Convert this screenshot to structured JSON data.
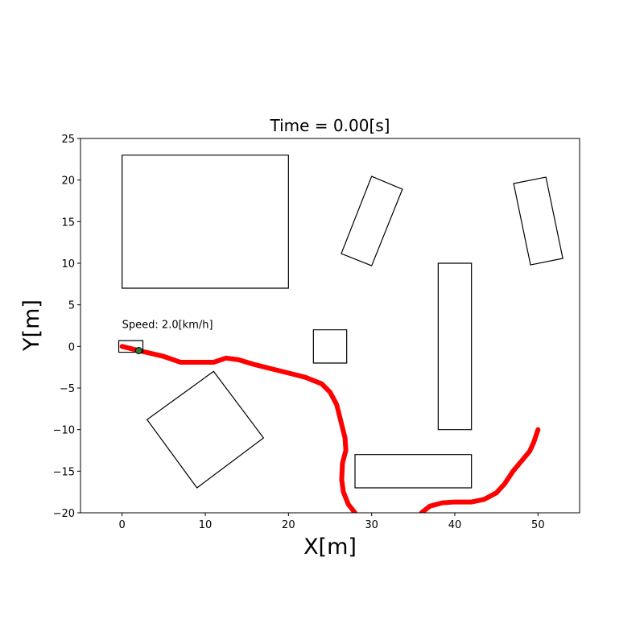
{
  "chart_data": {
    "type": "line",
    "title": "Time = 0.00[s]",
    "x_label": "X[m]",
    "y_label": "Y[m]",
    "annotation": {
      "text": "Speed: 2.0[km/h]",
      "x": 0,
      "y": 2.5
    },
    "xlim": [
      -5,
      55
    ],
    "ylim": [
      -20,
      25
    ],
    "xticks": [
      0,
      10,
      20,
      30,
      40,
      50
    ],
    "yticks": [
      {
        "value": -20,
        "label": "−20"
      },
      {
        "value": -15,
        "label": "−15"
      },
      {
        "value": -10,
        "label": "−10"
      },
      {
        "value": -5,
        "label": "−5"
      },
      0,
      5,
      10,
      15,
      20,
      25
    ],
    "series": [
      {
        "color": "#ff0000",
        "x": [
          0,
          2,
          5,
          7,
          9,
          11,
          12.5,
          14,
          16,
          18,
          20,
          22,
          24,
          25,
          25.8,
          26.3,
          26.8,
          26.9,
          26.5,
          26.4,
          26.6,
          27.2,
          28,
          null,
          36,
          37,
          38.5,
          40,
          42,
          43.5,
          45,
          46,
          47,
          48,
          49,
          49.5,
          50
        ],
        "y": [
          0,
          -0.5,
          -1.2,
          -1.9,
          -1.9,
          -1.9,
          -1.4,
          -1.6,
          -2.2,
          -2.7,
          -3.2,
          -3.7,
          -4.5,
          -5.5,
          -7,
          -9,
          -11,
          -12.5,
          -14,
          -16,
          -17.5,
          -19,
          -20,
          null,
          -20,
          -19.2,
          -18.8,
          -18.7,
          -18.7,
          -18.4,
          -17.6,
          -16.5,
          -15,
          -13.8,
          -12.6,
          -11.5,
          -10
        ]
      }
    ],
    "obstacles": [
      {
        "x": [
          0,
          20,
          20,
          0
        ],
        "y": [
          7,
          7,
          23,
          23
        ]
      },
      {
        "x": [
          30,
          33.7,
          30,
          26.35
        ],
        "y": [
          20.45,
          18.9,
          9.7,
          11.16
        ]
      },
      {
        "x": [
          47.07,
          50.95,
          52.98,
          49.1
        ],
        "y": [
          19.58,
          20.35,
          10.58,
          9.8
        ]
      },
      {
        "x": [
          38,
          42,
          42,
          38
        ],
        "y": [
          -10,
          -10,
          10,
          10
        ]
      },
      {
        "x": [
          23,
          27,
          27,
          23
        ],
        "y": [
          -2,
          -2,
          2,
          2
        ]
      },
      {
        "x": [
          28,
          42,
          42,
          28
        ],
        "y": [
          -17,
          -17,
          -13,
          -13
        ]
      },
      {
        "x": [
          11,
          17,
          9,
          3
        ],
        "y": [
          -3,
          -11,
          -17,
          -8.8
        ]
      }
    ],
    "vehicle": {
      "x": [
        -0.4,
        2.5,
        2.5,
        -0.4
      ],
      "y": [
        -0.7,
        -0.7,
        0.7,
        0.7
      ],
      "front_x": 2,
      "front_y": -0.5
    }
  }
}
